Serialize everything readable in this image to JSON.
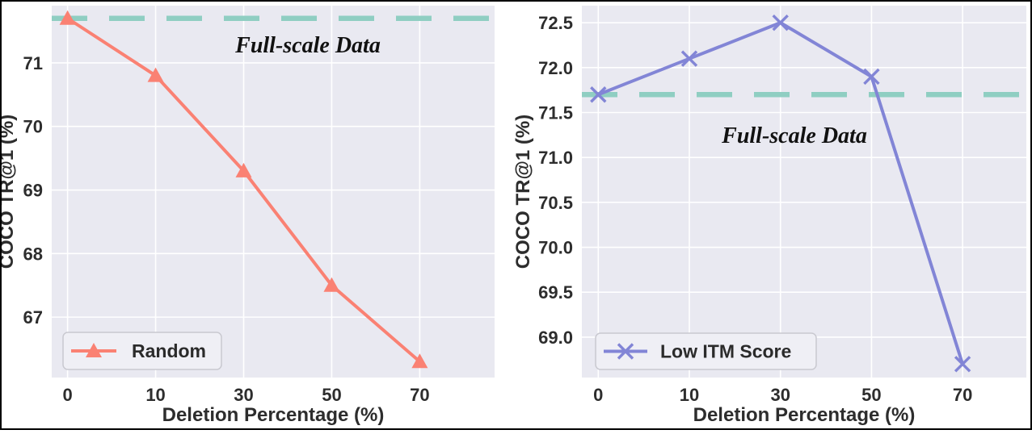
{
  "figure": {
    "xlabel": "Deletion Percentage (%)",
    "ylabel": "COCO TR@1 (%)",
    "baseline_label": "Full-scale Data"
  },
  "colors": {
    "plot_background": "#E9E9F1",
    "gridline": "#FFFFFF",
    "baseline_teal": "#8FCEC2",
    "series_left": "#FA8173",
    "series_right": "#8285D6",
    "tick_text": "#2D2D2D",
    "legend_background": "#EFEFF5",
    "legend_border": "#C9C9D0"
  },
  "chart_data": [
    {
      "type": "line",
      "panel": "left",
      "categories": [
        "0",
        "10",
        "30",
        "50",
        "70"
      ],
      "series": [
        {
          "name": "Random",
          "values": [
            71.7,
            70.8,
            69.3,
            67.5,
            66.3
          ],
          "color": "#FA8173",
          "marker": "triangle"
        }
      ],
      "baseline": {
        "value": 71.7,
        "label": "Full-scale Data",
        "color": "#8FCEC2",
        "style": "dashed"
      },
      "xlabel": "Deletion Percentage (%)",
      "ylabel": "COCO TR@1 (%)",
      "ytick_labels": [
        "67",
        "68",
        "69",
        "70",
        "71"
      ],
      "ytick_values": [
        67,
        68,
        69,
        70,
        71
      ],
      "ylim": [
        66.05,
        71.9
      ],
      "xlim": [
        -0.18,
        4.85
      ],
      "grid": true,
      "legend_position": "lower left"
    },
    {
      "type": "line",
      "panel": "right",
      "categories": [
        "0",
        "10",
        "30",
        "50",
        "70"
      ],
      "series": [
        {
          "name": "Low ITM Score",
          "values": [
            71.7,
            72.1,
            72.5,
            71.9,
            68.7
          ],
          "color": "#8285D6",
          "marker": "x"
        }
      ],
      "baseline": {
        "value": 71.7,
        "label": "Full-scale Data",
        "color": "#8FCEC2",
        "style": "dashed"
      },
      "xlabel": "Deletion Percentage (%)",
      "ylabel": "COCO TR@1 (%)",
      "ytick_labels": [
        "69.0",
        "69.5",
        "70.0",
        "70.5",
        "71.0",
        "71.5",
        "72.0",
        "72.5"
      ],
      "ytick_values": [
        69.0,
        69.5,
        70.0,
        70.5,
        71.0,
        71.5,
        72.0,
        72.5
      ],
      "ylim": [
        68.55,
        72.69
      ],
      "xlim": [
        -0.18,
        4.7
      ],
      "grid": true,
      "legend_position": "lower left"
    }
  ]
}
